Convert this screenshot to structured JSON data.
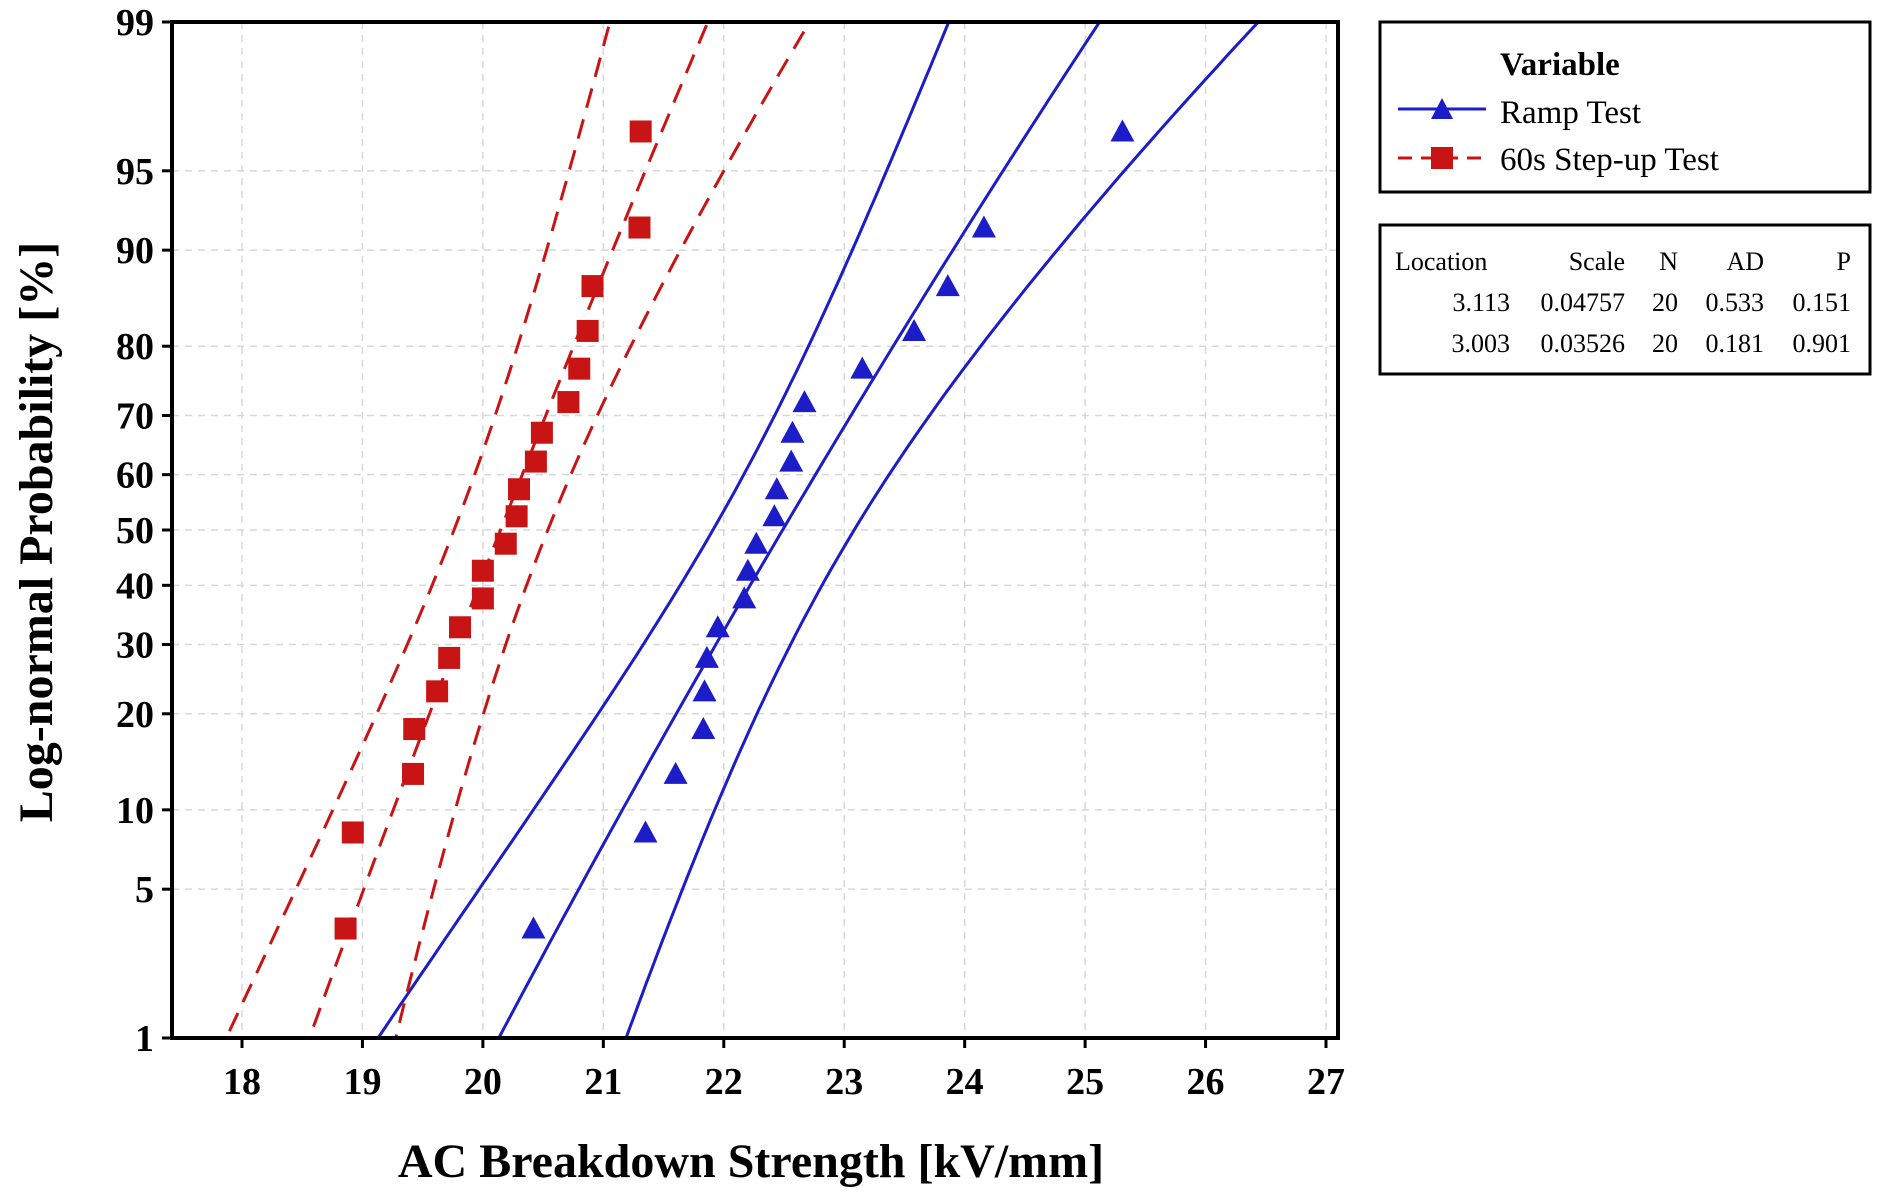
{
  "chart_data": {
    "type": "scatter",
    "title": "",
    "xlabel": "AC Breakdown Strength [kV/mm]",
    "ylabel": "Log-normal Probability [%]",
    "xlim": [
      17.5,
      27.1
    ],
    "ylim_percent": [
      1,
      99
    ],
    "y_scale": "normal-probability",
    "grid": true,
    "x_ticks": [
      18,
      19,
      20,
      21,
      22,
      23,
      24,
      25,
      26,
      27
    ],
    "y_ticks": [
      1,
      5,
      10,
      20,
      30,
      40,
      50,
      60,
      70,
      80,
      90,
      95,
      99
    ],
    "legend": {
      "title": "Variable",
      "placement": "right-top",
      "entries": [
        "Ramp Test",
        "60s Step-up Test"
      ]
    },
    "stats_table": {
      "headers": [
        "Location",
        "Scale",
        "N",
        "AD",
        "P"
      ],
      "rows": [
        [
          "3.113",
          "0.04757",
          "20",
          "0.533",
          "0.151"
        ],
        [
          "3.003",
          "0.03526",
          "20",
          "0.181",
          "0.901"
        ]
      ]
    },
    "series": [
      {
        "name": "Ramp Test",
        "color": "#1c1cc8",
        "marker": "triangle",
        "line_style": "solid",
        "location": 3.113,
        "scale": 0.04757,
        "x": [
          20.42,
          21.35,
          21.6,
          21.83,
          21.84,
          21.86,
          21.95,
          22.17,
          22.2,
          22.27,
          22.42,
          22.44,
          22.56,
          22.57,
          22.67,
          23.15,
          23.58,
          23.86,
          24.16,
          25.31
        ],
        "y": [
          3.4,
          8.3,
          13.2,
          18.1,
          23.0,
          27.9,
          32.8,
          37.7,
          42.6,
          47.5,
          52.5,
          57.4,
          62.3,
          67.2,
          72.1,
          77.0,
          81.9,
          86.8,
          91.7,
          96.6
        ]
      },
      {
        "name": "60s Step-up Test",
        "color": "#c81414",
        "marker": "square",
        "line_style": "dashed",
        "location": 3.003,
        "scale": 0.03526,
        "x": [
          18.86,
          18.92,
          19.42,
          19.43,
          19.62,
          19.72,
          19.81,
          20.0,
          20.0,
          20.19,
          20.28,
          20.3,
          20.44,
          20.49,
          20.71,
          20.8,
          20.87,
          20.91,
          21.3,
          21.31
        ],
        "y": [
          3.4,
          8.3,
          13.2,
          18.1,
          23.0,
          27.9,
          32.8,
          37.7,
          42.6,
          47.5,
          52.5,
          57.4,
          62.3,
          67.2,
          72.1,
          77.0,
          81.9,
          86.8,
          91.7,
          96.6
        ]
      }
    ]
  }
}
